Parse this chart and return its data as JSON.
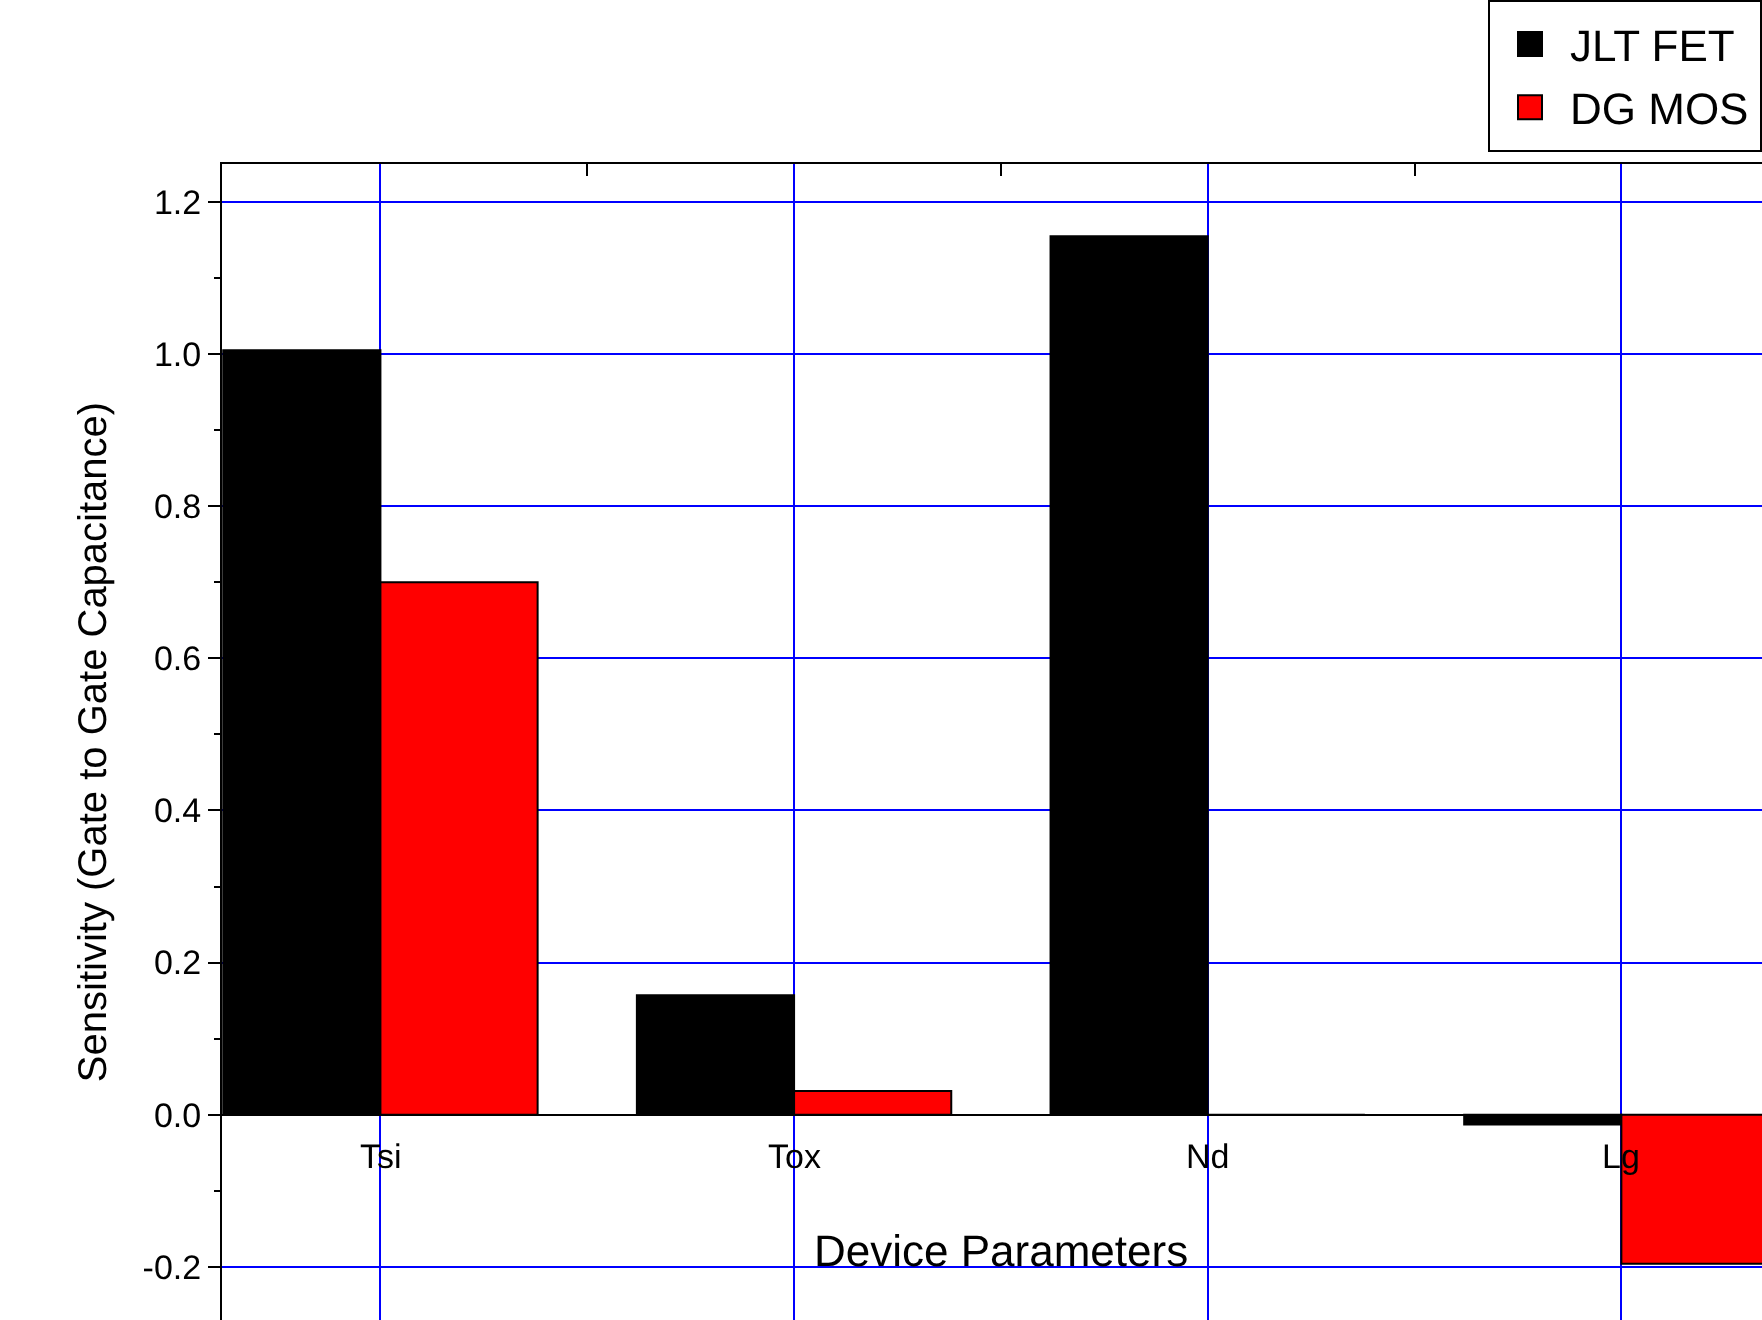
{
  "chart_data": {
    "type": "bar",
    "xlabel": "Device Parameters",
    "ylabel": "Sensitivity (Gate to Gate Capacitance)",
    "categories": [
      "Tsi",
      "Tox",
      "Nd",
      "Lg"
    ],
    "series": [
      {
        "name": "JLT FET",
        "color": "#000000",
        "values": [
          1.005,
          0.157,
          1.155,
          -0.013
        ]
      },
      {
        "name": "DG MOS",
        "color": "#ff0000",
        "values": [
          0.7,
          0.031,
          0.0,
          -0.196
        ]
      }
    ],
    "ylim": [
      -0.27,
      1.25
    ],
    "yticks": [
      {
        "value": -0.2,
        "label": "-0.2"
      },
      {
        "value": 0.0,
        "label": "0.0"
      },
      {
        "value": 0.2,
        "label": "0.2"
      },
      {
        "value": 0.4,
        "label": "0.4"
      },
      {
        "value": 0.6,
        "label": "0.6"
      },
      {
        "value": 0.8,
        "label": "0.8"
      },
      {
        "value": 1.0,
        "label": "1.0"
      },
      {
        "value": 1.2,
        "label": "1.2"
      }
    ],
    "grid": true,
    "legend": "top right"
  }
}
